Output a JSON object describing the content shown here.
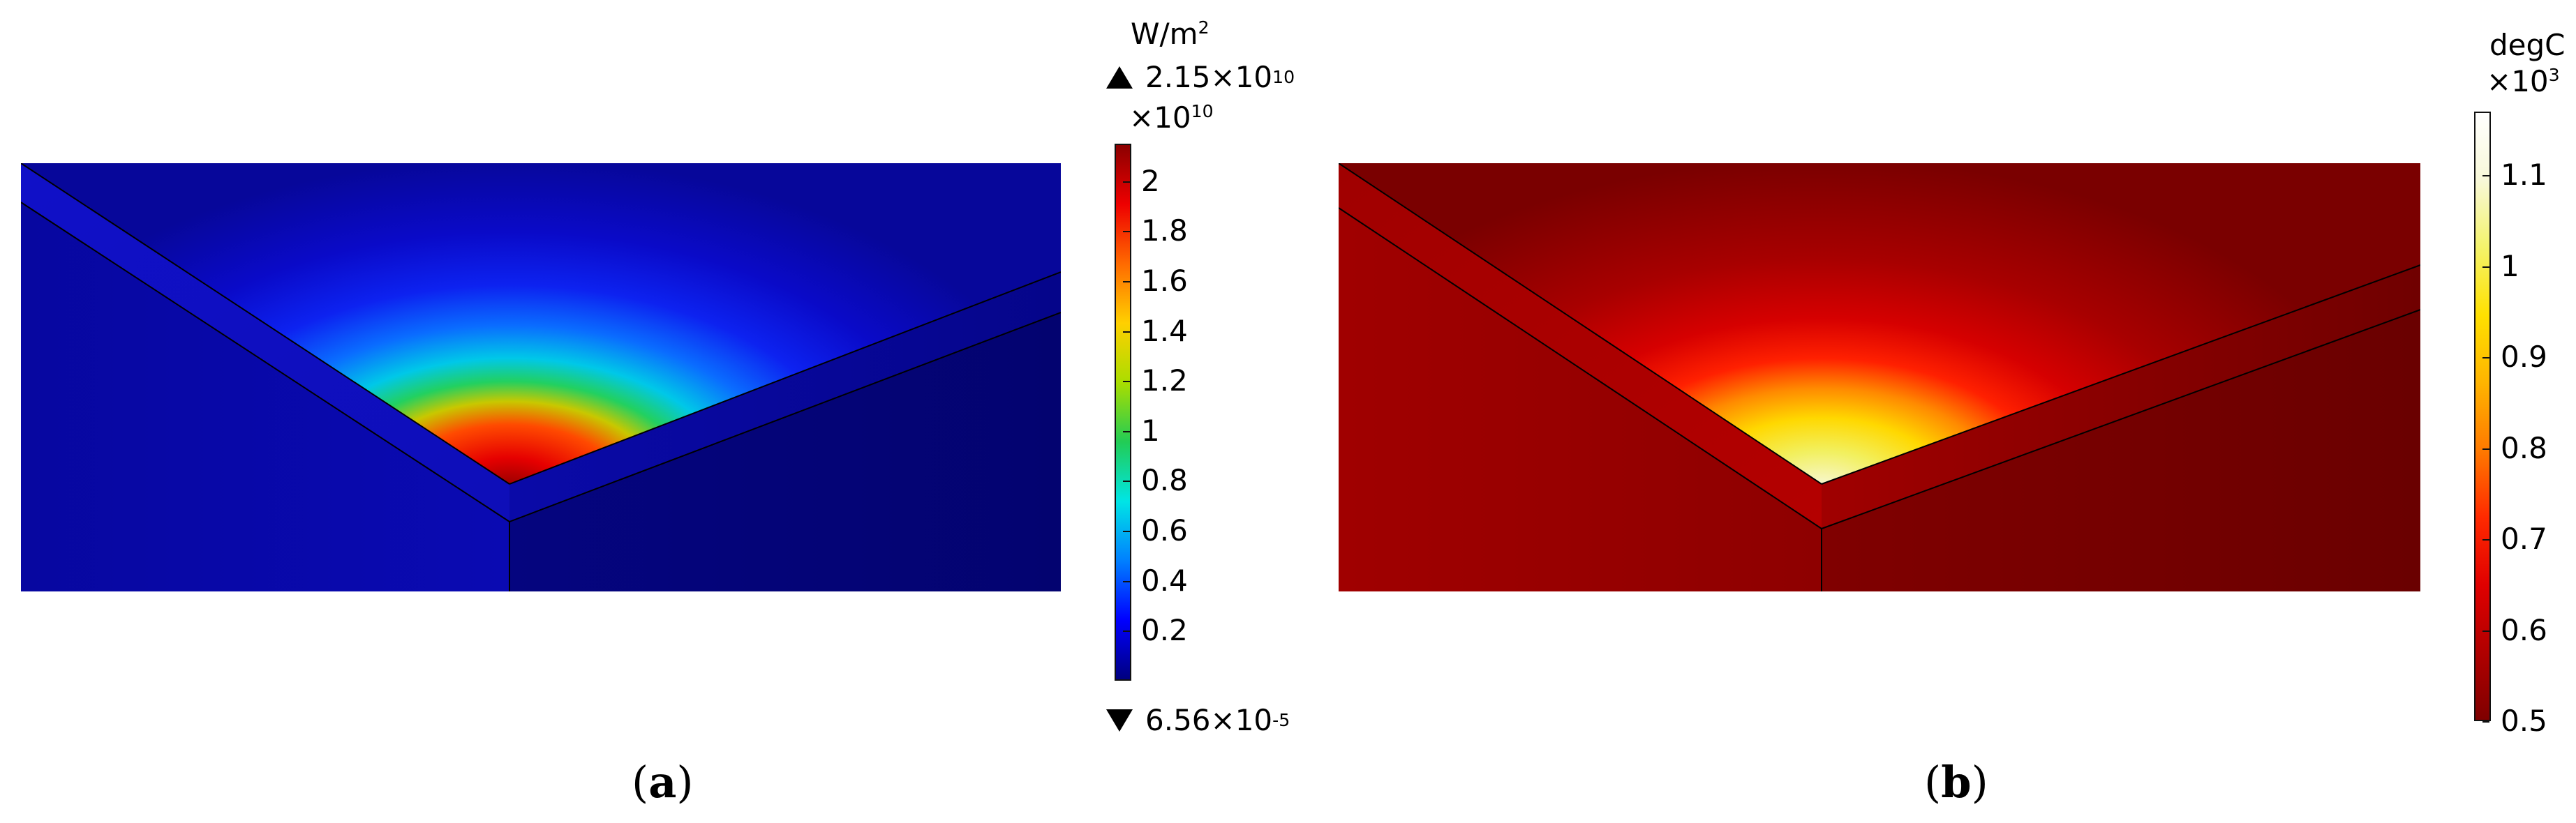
{
  "panel_a": {
    "caption_open": "(",
    "caption_letter": "a",
    "caption_close": ")",
    "unit_base": "W/m",
    "unit_exp": "2",
    "max_marker": "2.15×10",
    "max_marker_exp": "10",
    "multiplier": "×10",
    "multiplier_exp": "10",
    "min_marker": "6.56×10",
    "min_marker_exp": "-5",
    "colormap": "rainbow",
    "colormap_colors": [
      "#00007f",
      "#0000ff",
      "#0080ff",
      "#00e5e5",
      "#22cc55",
      "#aadd00",
      "#ffd000",
      "#ff6a00",
      "#ee0000",
      "#8b0000"
    ],
    "ticks": [
      "0.2",
      "0.4",
      "0.6",
      "0.8",
      "1",
      "1.2",
      "1.4",
      "1.6",
      "1.8",
      "2"
    ],
    "scale_min": 0,
    "scale_max": 2.15
  },
  "panel_b": {
    "caption_open": "(",
    "caption_letter": "b",
    "caption_close": ")",
    "unit": "degC",
    "multiplier": "×10",
    "multiplier_exp": "3",
    "colormap": "heat",
    "colormap_colors": [
      "#7f0000",
      "#b00000",
      "#e00000",
      "#ff2a00",
      "#ff7a00",
      "#ffb400",
      "#ffe000",
      "#f4f36a",
      "#f8f8d8",
      "#ffffff"
    ],
    "ticks": [
      "0.5",
      "0.6",
      "0.7",
      "0.8",
      "0.9",
      "1",
      "1.1"
    ],
    "scale_min": 0.5,
    "scale_max": 1.17
  }
}
